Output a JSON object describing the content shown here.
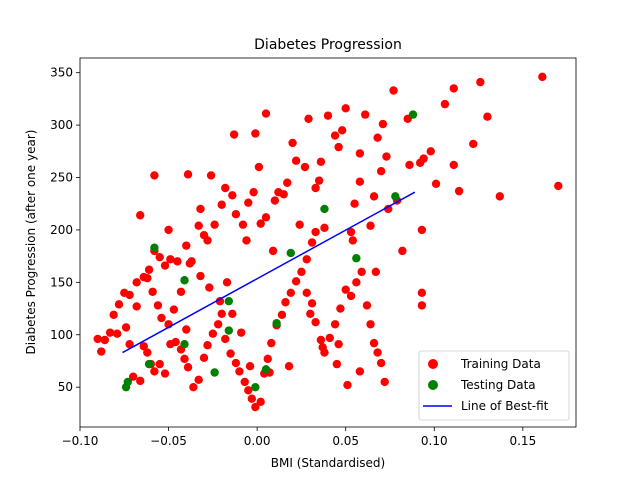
{
  "chart_data": {
    "type": "scatter",
    "title": "Diabetes Progression",
    "xlabel": "BMI (Standardised)",
    "ylabel": "Diabetes Progression (after one year)",
    "xlim": [
      -0.1,
      0.18
    ],
    "ylim": [
      12,
      364
    ],
    "x_ticks": [
      -0.1,
      -0.05,
      0.0,
      0.05,
      0.1,
      0.15
    ],
    "x_tick_labels": [
      "−0.10",
      "−0.05",
      "0.00",
      "0.05",
      "0.10",
      "0.15"
    ],
    "y_ticks": [
      50,
      100,
      150,
      200,
      250,
      300,
      350
    ],
    "y_tick_labels": [
      "50",
      "100",
      "150",
      "200",
      "250",
      "300",
      "350"
    ],
    "grid": false,
    "legend_position": "bottom-right",
    "colors": {
      "training": "#ff0000",
      "testing": "#008000",
      "line": "#0000ff"
    },
    "legend": {
      "training": "Training Data",
      "testing": "Testing Data",
      "line": "Line of Best-fit"
    },
    "series": [
      {
        "name": "Training Data",
        "kind": "scatter",
        "color": "#ff0000",
        "points": [
          [
            0.161,
            346
          ],
          [
            0.17,
            242
          ],
          [
            0.137,
            232
          ],
          [
            0.13,
            308
          ],
          [
            0.126,
            341
          ],
          [
            0.122,
            282
          ],
          [
            0.114,
            237
          ],
          [
            0.111,
            262
          ],
          [
            0.106,
            320
          ],
          [
            0.111,
            335
          ],
          [
            0.101,
            244
          ],
          [
            0.098,
            275
          ],
          [
            0.094,
            268
          ],
          [
            0.092,
            264
          ],
          [
            0.093,
            200
          ],
          [
            0.093,
            140
          ],
          [
            0.093,
            128
          ],
          [
            0.082,
            180
          ],
          [
            0.086,
            262
          ],
          [
            0.085,
            306
          ],
          [
            0.077,
            333
          ],
          [
            0.079,
            228
          ],
          [
            0.073,
            270
          ],
          [
            0.07,
            256
          ],
          [
            0.068,
            288
          ],
          [
            0.071,
            301
          ],
          [
            0.066,
            232
          ],
          [
            0.061,
            310
          ],
          [
            0.058,
            273
          ],
          [
            0.058,
            246
          ],
          [
            0.055,
            225
          ],
          [
            0.053,
            198
          ],
          [
            0.048,
            295
          ],
          [
            0.05,
            316
          ],
          [
            0.044,
            290
          ],
          [
            0.04,
            309
          ],
          [
            0.036,
            265
          ],
          [
            0.035,
            247
          ],
          [
            0.033,
            240
          ],
          [
            0.038,
            202
          ],
          [
            0.033,
            198
          ],
          [
            0.031,
            188
          ],
          [
            0.028,
            172
          ],
          [
            0.027,
            260
          ],
          [
            0.022,
            266
          ],
          [
            0.02,
            283
          ],
          [
            0.017,
            245
          ],
          [
            0.015,
            234
          ],
          [
            0.012,
            236
          ],
          [
            0.01,
            228
          ],
          [
            0.005,
            212
          ],
          [
            0.002,
            206
          ],
          [
            0.001,
            260
          ],
          [
            -0.002,
            236
          ],
          [
            -0.005,
            226
          ],
          [
            -0.008,
            205
          ],
          [
            -0.012,
            215
          ],
          [
            -0.014,
            233
          ],
          [
            -0.018,
            240
          ],
          [
            -0.02,
            224
          ],
          [
            -0.024,
            205
          ],
          [
            -0.028,
            190
          ],
          [
            -0.03,
            195
          ],
          [
            -0.033,
            204
          ],
          [
            -0.037,
            170
          ],
          [
            -0.04,
            185
          ],
          [
            -0.045,
            170
          ],
          [
            -0.049,
            172
          ],
          [
            -0.052,
            166
          ],
          [
            -0.055,
            174
          ],
          [
            -0.058,
            180
          ],
          [
            -0.061,
            162
          ],
          [
            -0.064,
            155
          ],
          [
            -0.068,
            150
          ],
          [
            -0.072,
            138
          ],
          [
            -0.075,
            140
          ],
          [
            -0.078,
            129
          ],
          [
            -0.081,
            119
          ],
          [
            -0.083,
            102
          ],
          [
            -0.086,
            95
          ],
          [
            -0.088,
            84
          ],
          [
            -0.09,
            96
          ],
          [
            -0.079,
            101
          ],
          [
            -0.074,
            107
          ],
          [
            -0.07,
            60
          ],
          [
            -0.066,
            56
          ],
          [
            -0.064,
            89
          ],
          [
            -0.06,
            72
          ],
          [
            -0.058,
            65
          ],
          [
            -0.055,
            72
          ],
          [
            -0.052,
            63
          ],
          [
            -0.049,
            91
          ],
          [
            -0.046,
            93
          ],
          [
            -0.043,
            86
          ],
          [
            -0.041,
            77
          ],
          [
            -0.039,
            69
          ],
          [
            -0.036,
            50
          ],
          [
            -0.033,
            57
          ],
          [
            -0.03,
            78
          ],
          [
            -0.028,
            90
          ],
          [
            -0.025,
            101
          ],
          [
            -0.022,
            110
          ],
          [
            -0.02,
            120
          ],
          [
            -0.018,
            96
          ],
          [
            -0.015,
            82
          ],
          [
            -0.012,
            73
          ],
          [
            -0.01,
            65
          ],
          [
            -0.007,
            55
          ],
          [
            -0.005,
            47
          ],
          [
            -0.003,
            39
          ],
          [
            -0.001,
            31
          ],
          [
            0.002,
            36
          ],
          [
            0.004,
            63
          ],
          [
            0.006,
            77
          ],
          [
            0.008,
            92
          ],
          [
            0.011,
            109
          ],
          [
            0.014,
            119
          ],
          [
            0.016,
            131
          ],
          [
            0.019,
            140
          ],
          [
            0.022,
            151
          ],
          [
            0.025,
            160
          ],
          [
            0.028,
            140
          ],
          [
            0.03,
            120
          ],
          [
            0.033,
            112
          ],
          [
            0.036,
            95
          ],
          [
            0.038,
            83
          ],
          [
            0.041,
            97
          ],
          [
            0.044,
            110
          ],
          [
            0.047,
            125
          ],
          [
            0.05,
            143
          ],
          [
            0.053,
            137
          ],
          [
            0.056,
            150
          ],
          [
            0.059,
            160
          ],
          [
            0.062,
            128
          ],
          [
            0.064,
            110
          ],
          [
            0.066,
            92
          ],
          [
            0.068,
            83
          ],
          [
            0.07,
            73
          ],
          [
            0.072,
            55
          ],
          [
            0.058,
            65
          ],
          [
            0.051,
            52
          ],
          [
            0.045,
            72
          ],
          [
            0.037,
            88
          ],
          [
            0.018,
            70
          ],
          [
            0.007,
            64
          ],
          [
            -0.004,
            70
          ],
          [
            -0.009,
            102
          ],
          [
            -0.014,
            120
          ],
          [
            -0.021,
            132
          ],
          [
            -0.027,
            145
          ],
          [
            -0.032,
            156
          ],
          [
            -0.038,
            168
          ],
          [
            -0.043,
            141
          ],
          [
            -0.047,
            124
          ],
          [
            -0.05,
            110
          ],
          [
            -0.054,
            116
          ],
          [
            -0.056,
            128
          ],
          [
            -0.059,
            141
          ],
          [
            -0.062,
            154
          ],
          [
            -0.066,
            214
          ],
          [
            -0.058,
            252
          ],
          [
            -0.039,
            253
          ],
          [
            -0.026,
            252
          ],
          [
            -0.013,
            291
          ],
          [
            -0.001,
            292
          ],
          [
            0.005,
            311
          ],
          [
            0.029,
            306
          ],
          [
            0.046,
            279
          ],
          [
            0.064,
            204
          ],
          [
            0.074,
            220
          ],
          [
            0.054,
            190
          ],
          [
            0.024,
            205
          ],
          [
            -0.006,
            190
          ],
          [
            -0.032,
            220
          ],
          [
            -0.05,
            200
          ],
          [
            -0.068,
            127
          ],
          [
            -0.072,
            91
          ],
          [
            -0.062,
            83
          ],
          [
            -0.04,
            105
          ],
          [
            -0.017,
            150
          ],
          [
            0.009,
            180
          ],
          [
            0.031,
            130
          ],
          [
            0.046,
            91
          ],
          [
            0.067,
            160
          ]
        ]
      },
      {
        "name": "Testing Data",
        "kind": "scatter",
        "color": "#008000",
        "points": [
          [
            0.088,
            310
          ],
          [
            0.078,
            232
          ],
          [
            0.038,
            220
          ],
          [
            0.056,
            173
          ],
          [
            0.019,
            178
          ],
          [
            0.011,
            111
          ],
          [
            -0.016,
            104
          ],
          [
            -0.016,
            132
          ],
          [
            -0.024,
            64
          ],
          [
            -0.041,
            152
          ],
          [
            -0.041,
            91
          ],
          [
            -0.058,
            183
          ],
          [
            -0.061,
            72
          ],
          [
            -0.074,
            50
          ],
          [
            -0.073,
            55
          ],
          [
            -0.001,
            50
          ],
          [
            0.005,
            67
          ]
        ]
      },
      {
        "name": "Line of Best-fit",
        "kind": "line",
        "color": "#0000ff",
        "x": [
          -0.076,
          0.089
        ],
        "y": [
          83,
          236
        ]
      }
    ]
  }
}
